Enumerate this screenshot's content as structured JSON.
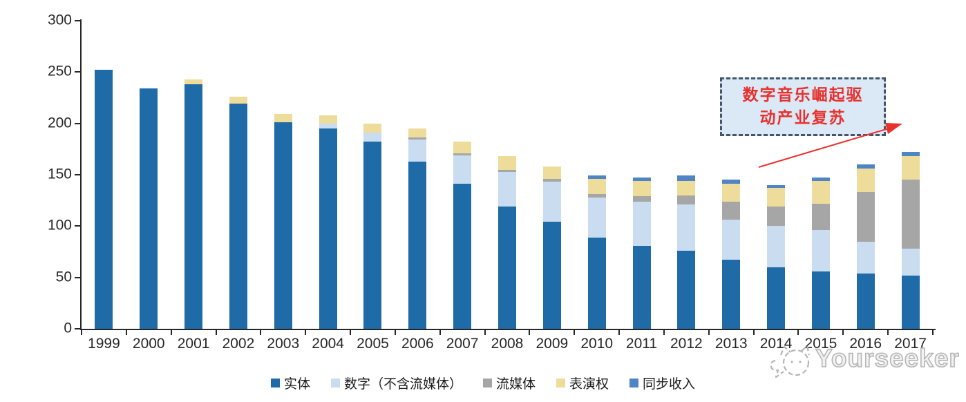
{
  "chart_data": {
    "type": "bar",
    "stacked": true,
    "title": "",
    "xlabel": "",
    "ylabel": "",
    "categories": [
      "1999",
      "2000",
      "2001",
      "2002",
      "2003",
      "2004",
      "2005",
      "2006",
      "2007",
      "2008",
      "2009",
      "2010",
      "2011",
      "2012",
      "2013",
      "2014",
      "2015",
      "2016",
      "2017"
    ],
    "series": [
      {
        "name": "实体",
        "color": "#1F6BA8",
        "values": [
          252,
          234,
          238,
          219,
          201,
          195,
          182,
          163,
          141,
          119,
          104,
          89,
          81,
          76,
          67,
          60,
          56,
          54,
          52
        ]
      },
      {
        "name": "数字（不含流媒体）",
        "color": "#C9DCF0",
        "values": [
          0,
          0,
          0,
          0,
          0,
          5,
          9,
          21,
          28,
          34,
          39,
          39,
          43,
          45,
          39,
          40,
          40,
          31,
          26
        ]
      },
      {
        "name": "流媒体",
        "color": "#A6A6A6",
        "values": [
          0,
          0,
          0,
          0,
          0,
          0,
          0,
          2,
          2,
          2,
          3,
          3,
          5,
          9,
          18,
          19,
          26,
          48,
          67
        ]
      },
      {
        "name": "表演权",
        "color": "#EEDC9B",
        "values": [
          0,
          0,
          5,
          7,
          8,
          8,
          9,
          9,
          11,
          13,
          12,
          15,
          15,
          14,
          17,
          18,
          22,
          23,
          23
        ]
      },
      {
        "name": "同步收入",
        "color": "#4F85C4",
        "values": [
          0,
          0,
          0,
          0,
          0,
          0,
          0,
          0,
          0,
          0,
          0,
          3,
          3,
          5,
          4,
          3,
          3,
          4,
          4
        ]
      }
    ],
    "ylim": [
      0,
      300
    ],
    "yticks": [
      0,
      50,
      100,
      150,
      200,
      250,
      300
    ],
    "grid": false,
    "legend_position": "bottom"
  },
  "annotation": {
    "lines": [
      "数字音乐崛起驱",
      "动产业复苏"
    ],
    "text": "数字音乐崛起驱动产业复苏"
  },
  "watermark": {
    "text": "Yourseeker",
    "logo": "cat-face-icon"
  },
  "colors": {
    "axis": "#262626",
    "annotation_border": "#44546A",
    "annotation_bg": "#DBE8F6",
    "annotation_text": "#E8312D",
    "arrow": "#E8312D",
    "watermark": "#B5B5B5"
  }
}
